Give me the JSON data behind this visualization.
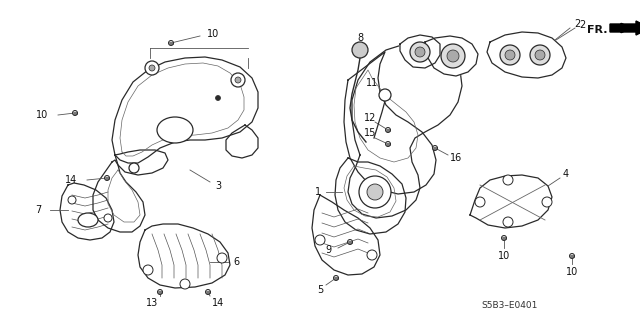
{
  "bg_color": "#ffffff",
  "figure_width": 6.4,
  "figure_height": 3.19,
  "dpi": 100,
  "diagram_code": "S5B3–E0401",
  "line_color": "#2a2a2a",
  "line_width": 0.9
}
